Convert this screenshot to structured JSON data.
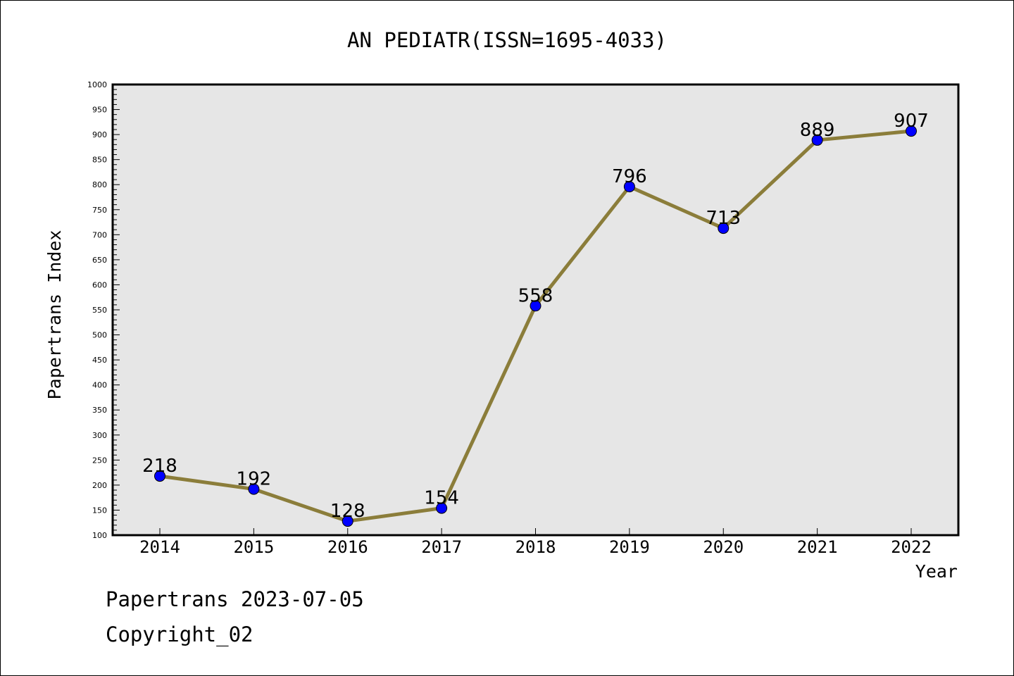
{
  "chart_data": {
    "type": "line",
    "title": "AN PEDIATR(ISSN=1695-4033)",
    "xlabel": "Year",
    "ylabel": "Papertrans Index",
    "categories": [
      "2014",
      "2015",
      "2016",
      "2017",
      "2018",
      "2019",
      "2020",
      "2021",
      "2022"
    ],
    "series": [
      {
        "values": [
          218,
          192,
          128,
          154,
          558,
          796,
          713,
          889,
          907
        ]
      }
    ],
    "data_labels": [
      "218",
      "192",
      "128",
      "154",
      "558",
      "796",
      "713",
      "889",
      "907"
    ],
    "ylim": [
      100,
      1000
    ],
    "yticks": [
      100,
      150,
      200,
      250,
      300,
      350,
      400,
      450,
      500,
      550,
      600,
      650,
      700,
      750,
      800,
      850,
      900,
      950,
      1000
    ],
    "grid": false,
    "colors": {
      "line": "#8b7d3a",
      "marker": "#0000ff",
      "plot_background": "#e6e6e6"
    }
  },
  "footer": {
    "line1": "Papertrans 2023-07-05",
    "line2": "Copyright_02"
  }
}
